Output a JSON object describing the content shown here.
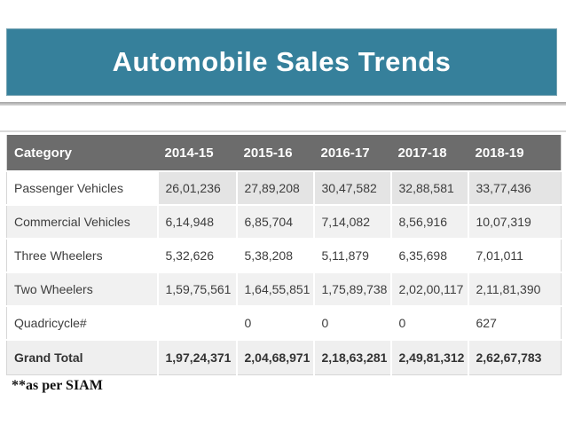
{
  "title": "Automobile Sales Trends",
  "footnote": "**as per SIAM",
  "colors": {
    "banner_bg": "#36809B",
    "banner_text": "#FFFFFF",
    "header_bg": "#6C6C6C",
    "header_text": "#FFFFFF",
    "stripe_row_bg": "#F1F1F1",
    "first_row_data_bg": "#E4E4E4",
    "total_row_bg": "#EFEFEF",
    "body_text": "#3D3D3D"
  },
  "table": {
    "columns": [
      "Category",
      "2014-15",
      "2015-16",
      "2016-17",
      "2017-18",
      "2018-19"
    ],
    "rows": [
      {
        "category": "Passenger Vehicles",
        "values": [
          "26,01,236",
          "27,89,208",
          "30,47,582",
          "32,88,581",
          "33,77,436"
        ],
        "bold": false
      },
      {
        "category": "Commercial Vehicles",
        "values": [
          "6,14,948",
          "6,85,704",
          "7,14,082",
          "8,56,916",
          "10,07,319"
        ],
        "bold": false
      },
      {
        "category": "Three Wheelers",
        "values": [
          "5,32,626",
          "5,38,208",
          "5,11,879",
          "6,35,698",
          "7,01,011"
        ],
        "bold": false
      },
      {
        "category": "Two Wheelers",
        "values": [
          "1,59,75,561",
          "1,64,55,851",
          "1,75,89,738",
          "2,02,00,117",
          "2,11,81,390"
        ],
        "bold": false
      },
      {
        "category": "Quadricycle#",
        "values": [
          "",
          "0",
          "0",
          "0",
          "627"
        ],
        "bold": false
      },
      {
        "category": "Grand Total",
        "values": [
          "1,97,24,371",
          "2,04,68,971",
          "2,18,63,281",
          "2,49,81,312",
          "2,62,67,783"
        ],
        "bold": true
      }
    ]
  },
  "chart_data": {
    "type": "table",
    "title": "Automobile Sales Trends",
    "categories": [
      "Passenger Vehicles",
      "Commercial Vehicles",
      "Three Wheelers",
      "Two Wheelers",
      "Quadricycle#",
      "Grand Total"
    ],
    "series": [
      {
        "name": "2014-15",
        "values": [
          2601236,
          614948,
          532626,
          15975561,
          null,
          19724371
        ]
      },
      {
        "name": "2015-16",
        "values": [
          2789208,
          685704,
          538208,
          16455851,
          0,
          20468971
        ]
      },
      {
        "name": "2016-17",
        "values": [
          3047582,
          714082,
          511879,
          17589738,
          0,
          21863281
        ]
      },
      {
        "name": "2017-18",
        "values": [
          3288581,
          856916,
          635698,
          20200117,
          0,
          24981312
        ]
      },
      {
        "name": "2018-19",
        "values": [
          3377436,
          1007319,
          701011,
          21181390,
          627,
          26267783
        ]
      }
    ],
    "annotations": [
      "**as per SIAM"
    ]
  }
}
